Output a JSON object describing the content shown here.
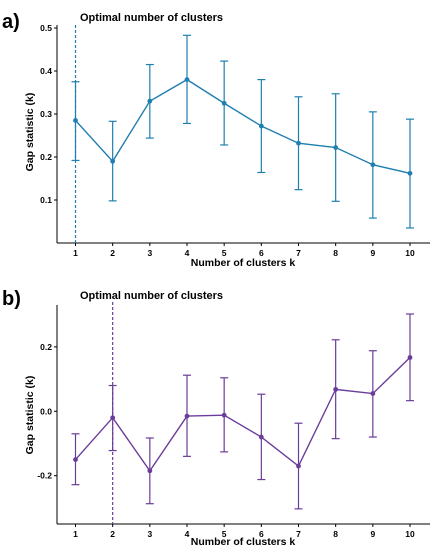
{
  "chart_data": [
    {
      "panel_label": "a)",
      "type": "line",
      "title": "Optimal number of clusters",
      "xlabel": "Number of clusters k",
      "ylabel": "Gap statistic (k)",
      "x": [
        1,
        2,
        3,
        4,
        5,
        6,
        7,
        8,
        9,
        10
      ],
      "y": [
        0.285,
        0.19,
        0.33,
        0.38,
        0.325,
        0.272,
        0.232,
        0.222,
        0.182,
        0.162
      ],
      "error_low": [
        0.192,
        0.098,
        0.244,
        0.278,
        0.228,
        0.164,
        0.124,
        0.097,
        0.058,
        0.035
      ],
      "error_high": [
        0.375,
        0.283,
        0.415,
        0.483,
        0.423,
        0.38,
        0.34,
        0.347,
        0.305,
        0.288
      ],
      "xticks": [
        "1",
        "2",
        "3",
        "4",
        "5",
        "6",
        "7",
        "8",
        "9",
        "10"
      ],
      "yticks": [
        "0.1",
        "0.2",
        "0.3",
        "0.4",
        "0.5"
      ],
      "ytick_values": [
        0.1,
        0.2,
        0.3,
        0.4,
        0.5
      ],
      "ylim": [
        0.0,
        0.5
      ],
      "optimal_k": 1,
      "color": "#1f7fb0",
      "grid": false
    },
    {
      "panel_label": "b)",
      "type": "line",
      "title": "Optimal number of clusters",
      "xlabel": "Number of clusters k",
      "ylabel": "Gap statistic (k)",
      "x": [
        1,
        2,
        3,
        4,
        5,
        6,
        7,
        8,
        9,
        10
      ],
      "y": [
        -0.15,
        -0.02,
        -0.185,
        -0.015,
        -0.012,
        -0.08,
        -0.17,
        0.068,
        0.055,
        0.167
      ],
      "error_low": [
        -0.228,
        -0.122,
        -0.287,
        -0.14,
        -0.126,
        -0.212,
        -0.303,
        -0.085,
        -0.08,
        0.033
      ],
      "error_high": [
        -0.07,
        0.08,
        -0.083,
        0.112,
        0.104,
        0.053,
        -0.037,
        0.222,
        0.188,
        0.302
      ],
      "xticks": [
        "1",
        "2",
        "3",
        "4",
        "5",
        "6",
        "7",
        "8",
        "9",
        "10"
      ],
      "yticks": [
        "-0.2",
        "0.0",
        "0.2"
      ],
      "ytick_values": [
        -0.2,
        0.0,
        0.2
      ],
      "ylim": [
        -0.35,
        0.33
      ],
      "optimal_k": 2,
      "color": "#6a3d9a",
      "grid": false
    }
  ]
}
